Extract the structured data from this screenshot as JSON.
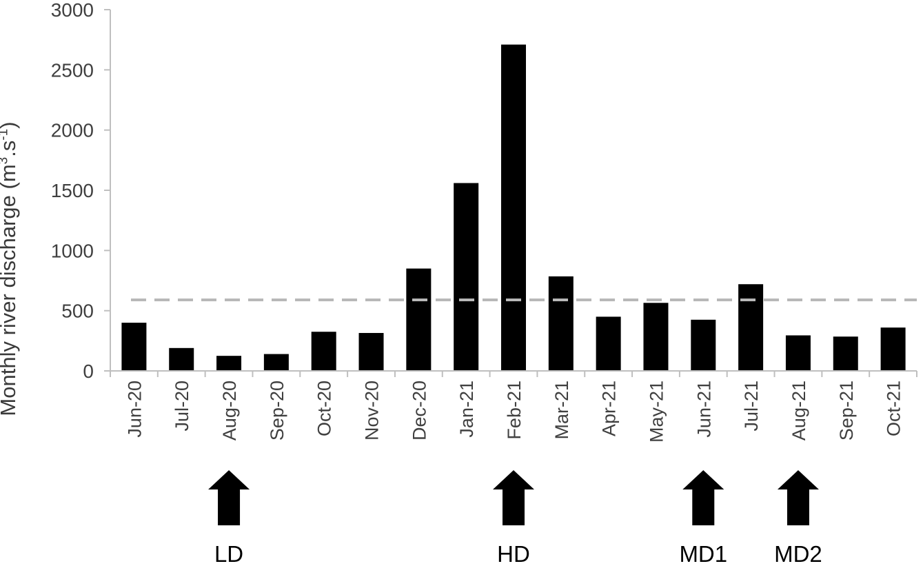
{
  "chart_data": {
    "type": "bar",
    "categories": [
      "Jun-20",
      "Jul-20",
      "Aug-20",
      "Sep-20",
      "Oct-20",
      "Nov-20",
      "Dec-20",
      "Jan-21",
      "Feb-21",
      "Mar-21",
      "Apr-21",
      "May-21",
      "Jun-21",
      "Jul-21",
      "Aug-21",
      "Sep-21",
      "Oct-21"
    ],
    "values": [
      400,
      190,
      125,
      140,
      325,
      315,
      850,
      1560,
      2710,
      785,
      450,
      565,
      425,
      720,
      295,
      285,
      360
    ],
    "xlabel": "",
    "ylabel": "Monthly river discharge (m³.s⁻¹)",
    "ylabel_parts": {
      "main": "Monthly river discharge (m",
      "sup1": "3",
      "mid": ".s",
      "sup2": "-1",
      "end": ")"
    },
    "ylim": [
      0,
      3000
    ],
    "yticks": [
      0,
      500,
      1000,
      1500,
      2000,
      2500,
      3000
    ],
    "reference_line": {
      "value": 590,
      "style": "dashed",
      "color": "#b8b8b8"
    },
    "bar_color": "#000000",
    "grid": false,
    "annotations": [
      {
        "label": "LD",
        "category": "Aug-20"
      },
      {
        "label": "HD",
        "category": "Feb-21"
      },
      {
        "label": "MD1",
        "category": "Jun-21"
      },
      {
        "label": "MD2",
        "category": "Aug-21"
      }
    ]
  }
}
